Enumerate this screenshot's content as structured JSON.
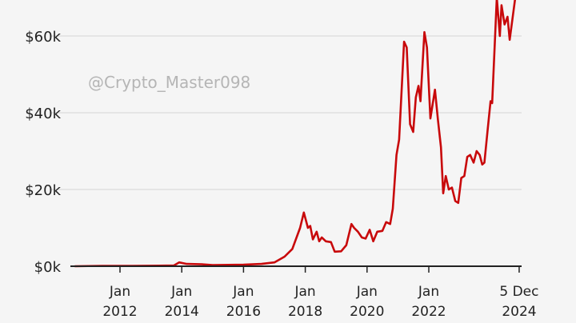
{
  "chart_data": {
    "type": "line",
    "title": "",
    "xlabel": "",
    "ylabel": "",
    "ylim": [
      0,
      69400
    ],
    "yticks": [
      0,
      20000,
      40000,
      60000
    ],
    "ytick_labels": [
      "$0k",
      "$20k",
      "$40k",
      "$60k"
    ],
    "xticks": [
      "2012-01-01",
      "2014-01-01",
      "2016-01-01",
      "2018-01-01",
      "2020-01-01",
      "2022-01-01",
      "2024-12-05"
    ],
    "xtick_labels": [
      [
        "Jan",
        "2012"
      ],
      [
        "Jan",
        "2014"
      ],
      [
        "Jan",
        "2016"
      ],
      [
        "Jan",
        "2018"
      ],
      [
        "Jan",
        "2020"
      ],
      [
        "Jan",
        "2022"
      ],
      [
        "5 Dec",
        "2024"
      ]
    ],
    "grid": "horizontal",
    "line_color": "#c8090b",
    "series": [
      {
        "points": [
          [
            "2010-07-15",
            0
          ],
          [
            "2011-06-01",
            100
          ],
          [
            "2012-06-01",
            100
          ],
          [
            "2013-04-01",
            150
          ],
          [
            "2013-10-01",
            200
          ],
          [
            "2013-12-01",
            1000
          ],
          [
            "2014-03-01",
            600
          ],
          [
            "2014-09-01",
            500
          ],
          [
            "2015-01-01",
            300
          ],
          [
            "2016-01-01",
            400
          ],
          [
            "2016-08-01",
            600
          ],
          [
            "2017-01-01",
            1000
          ],
          [
            "2017-05-01",
            2500
          ],
          [
            "2017-08-01",
            4500
          ],
          [
            "2017-11-01",
            10000
          ],
          [
            "2017-12-15",
            14000
          ],
          [
            "2018-02-01",
            10000
          ],
          [
            "2018-03-01",
            10500
          ],
          [
            "2018-04-01",
            7000
          ],
          [
            "2018-05-15",
            9000
          ],
          [
            "2018-06-15",
            6500
          ],
          [
            "2018-07-15",
            7500
          ],
          [
            "2018-09-01",
            6500
          ],
          [
            "2018-11-01",
            6300
          ],
          [
            "2018-12-15",
            3800
          ],
          [
            "2019-03-01",
            3900
          ],
          [
            "2019-05-01",
            5500
          ],
          [
            "2019-07-01",
            11000
          ],
          [
            "2019-08-01",
            10000
          ],
          [
            "2019-09-15",
            9000
          ],
          [
            "2019-11-01",
            7500
          ],
          [
            "2019-12-15",
            7200
          ],
          [
            "2020-02-01",
            9500
          ],
          [
            "2020-03-15",
            6500
          ],
          [
            "2020-05-01",
            9000
          ],
          [
            "2020-07-01",
            9200
          ],
          [
            "2020-08-15",
            11500
          ],
          [
            "2020-10-01",
            11000
          ],
          [
            "2020-11-01",
            15000
          ],
          [
            "2020-12-15",
            29000
          ],
          [
            "2021-01-15",
            33000
          ],
          [
            "2021-03-15",
            58500
          ],
          [
            "2021-04-15",
            57000
          ],
          [
            "2021-05-25",
            37000
          ],
          [
            "2021-07-01",
            35000
          ],
          [
            "2021-08-01",
            44000
          ],
          [
            "2021-09-01",
            47000
          ],
          [
            "2021-09-25",
            43000
          ],
          [
            "2021-11-10",
            61000
          ],
          [
            "2021-12-10",
            57000
          ],
          [
            "2022-01-20",
            38500
          ],
          [
            "2022-03-15",
            46000
          ],
          [
            "2022-04-20",
            38000
          ],
          [
            "2022-05-25",
            31000
          ],
          [
            "2022-06-20",
            19000
          ],
          [
            "2022-07-20",
            23500
          ],
          [
            "2022-08-25",
            20000
          ],
          [
            "2022-10-01",
            20500
          ],
          [
            "2022-11-10",
            17000
          ],
          [
            "2022-12-15",
            16500
          ],
          [
            "2023-01-20",
            23000
          ],
          [
            "2023-02-25",
            23500
          ],
          [
            "2023-04-01",
            28500
          ],
          [
            "2023-05-05",
            29000
          ],
          [
            "2023-06-15",
            27000
          ],
          [
            "2023-07-20",
            30000
          ],
          [
            "2023-08-25",
            29000
          ],
          [
            "2023-09-25",
            26500
          ],
          [
            "2023-10-20",
            27000
          ],
          [
            "2023-11-25",
            35000
          ],
          [
            "2024-01-01",
            43000
          ],
          [
            "2024-01-20",
            42500
          ],
          [
            "2024-03-15",
            70000
          ],
          [
            "2024-04-20",
            60000
          ],
          [
            "2024-05-10",
            68000
          ],
          [
            "2024-06-15",
            63000
          ],
          [
            "2024-07-20",
            65000
          ],
          [
            "2024-08-15",
            59000
          ],
          [
            "2024-10-20",
            70000
          ],
          [
            "2024-12-05",
            75000
          ]
        ]
      }
    ]
  },
  "watermark": "@Crypto_Master098"
}
